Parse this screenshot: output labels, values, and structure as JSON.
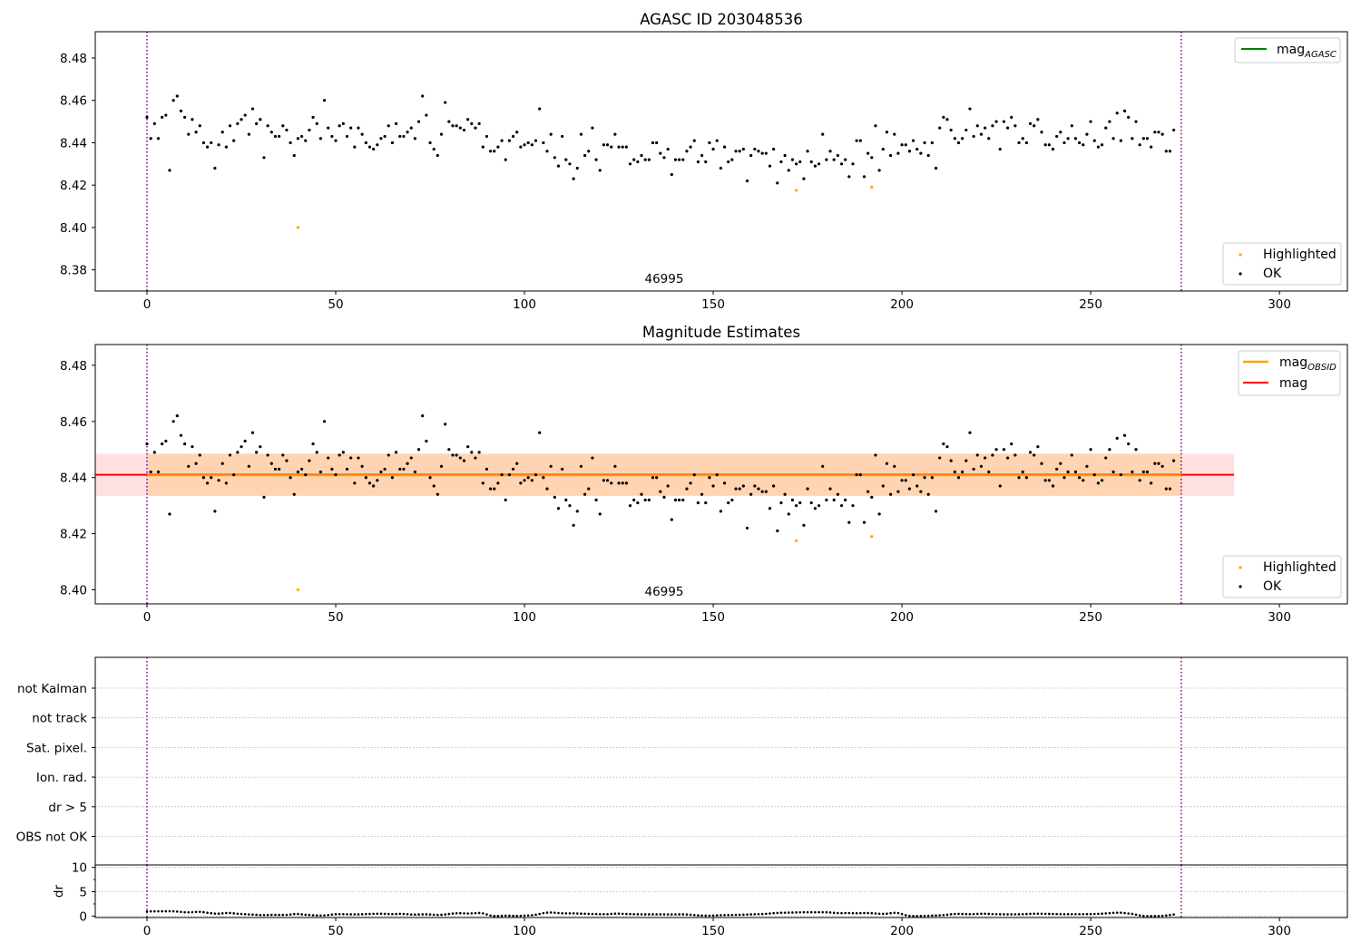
{
  "chart_data": [
    {
      "name": "agasc-panel",
      "type": "scatter",
      "title": "AGASC ID 203048536",
      "xlim": [
        -13.7,
        318
      ],
      "ylim": [
        8.37,
        8.4924
      ],
      "xticks": [
        0,
        50,
        100,
        150,
        200,
        250,
        300
      ],
      "yticks": [
        8.38,
        8.4,
        8.42,
        8.44,
        8.46,
        8.48
      ],
      "ytick_labels": [
        "8.38",
        "8.40",
        "8.42",
        "8.44",
        "8.46",
        "8.48"
      ],
      "vlines": [
        0,
        274
      ],
      "obsid_label": {
        "text": "46995",
        "x": 137
      },
      "legend_upper": [
        {
          "label": "mag",
          "subscript": "AGASC",
          "color": "#008000"
        }
      ],
      "legend_lower": [
        {
          "label": "Highlighted",
          "color": "#ffa500"
        },
        {
          "label": "OK",
          "color": "#000000"
        }
      ],
      "highlighted": [
        [
          40,
          8.4
        ],
        [
          172,
          8.4175
        ],
        [
          192,
          8.419
        ]
      ]
    },
    {
      "name": "estimates-panel",
      "type": "scatter",
      "title": "Magnitude Estimates",
      "xlim": [
        -13.7,
        318
      ],
      "ylim": [
        8.395,
        8.4874
      ],
      "xticks": [
        0,
        50,
        100,
        150,
        200,
        250,
        300
      ],
      "yticks": [
        8.4,
        8.42,
        8.44,
        8.46,
        8.48
      ],
      "ytick_labels": [
        "8.40",
        "8.42",
        "8.44",
        "8.46",
        "8.48"
      ],
      "vlines": [
        0,
        274
      ],
      "obsid_label": {
        "text": "46995",
        "x": 137
      },
      "mag": 8.441,
      "mag_band": [
        8.4335,
        8.4485
      ],
      "mag_band_x": [
        -13.7,
        288
      ],
      "mag_obsid": 8.4408,
      "mag_obsid_band": [
        8.4335,
        8.4485
      ],
      "mag_obsid_x": [
        0,
        274
      ],
      "legend_upper": [
        {
          "label": "mag",
          "subscript": "OBSID",
          "color": "#ffa500"
        },
        {
          "label": "mag",
          "subscript": "",
          "color": "#ff0000"
        }
      ],
      "legend_lower": [
        {
          "label": "Highlighted",
          "color": "#ffa500"
        },
        {
          "label": "OK",
          "color": "#000000"
        }
      ],
      "highlighted": [
        [
          40,
          8.4
        ],
        [
          172,
          8.4175
        ],
        [
          192,
          8.419
        ]
      ]
    },
    {
      "name": "flags-panel",
      "type": "scatter",
      "xlim": [
        -13.7,
        318
      ],
      "categories": [
        "not Kalman",
        "not track",
        "Sat. pixel.",
        "Ion. rad.",
        "dr > 5",
        "OBS not OK"
      ],
      "vlines": [
        0,
        274
      ]
    },
    {
      "name": "dr-panel",
      "type": "scatter",
      "xlim": [
        -13.7,
        318
      ],
      "ylim": [
        -0.3,
        10.5
      ],
      "xticks": [
        0,
        50,
        100,
        150,
        200,
        250,
        300
      ],
      "yticks": [
        0,
        5,
        10
      ],
      "ytick_labels": [
        "0",
        "5",
        "10"
      ],
      "ylabel": "dr",
      "vlines": [
        0,
        274
      ]
    }
  ],
  "samples": [
    [
      0,
      8.452,
      0.95
    ],
    [
      1,
      8.442,
      0.96
    ],
    [
      2,
      8.449,
      0.97
    ],
    [
      3,
      8.442,
      0.98
    ],
    [
      4,
      8.452,
      0.99
    ],
    [
      5,
      8.453,
      0.99
    ],
    [
      6,
      8.427,
      1.0
    ],
    [
      7,
      8.46,
      0.98
    ],
    [
      8,
      8.462,
      0.93
    ],
    [
      9,
      8.455,
      0.86
    ],
    [
      10,
      8.452,
      0.79
    ],
    [
      11,
      8.444,
      0.76
    ],
    [
      12,
      8.451,
      0.79
    ],
    [
      13,
      8.445,
      0.86
    ],
    [
      14,
      8.448,
      0.88
    ],
    [
      15,
      8.44,
      0.8
    ],
    [
      16,
      8.438,
      0.68
    ],
    [
      17,
      8.44,
      0.59
    ],
    [
      18,
      8.428,
      0.51
    ],
    [
      19,
      8.439,
      0.5
    ],
    [
      20,
      8.445,
      0.56
    ],
    [
      21,
      8.438,
      0.63
    ],
    [
      22,
      8.448,
      0.64
    ],
    [
      23,
      8.441,
      0.57
    ],
    [
      24,
      8.449,
      0.48
    ],
    [
      25,
      8.451,
      0.44
    ],
    [
      26,
      8.453,
      0.4
    ],
    [
      27,
      8.444,
      0.35
    ],
    [
      28,
      8.456,
      0.31
    ],
    [
      29,
      8.449,
      0.27
    ],
    [
      30,
      8.451,
      0.22
    ],
    [
      31,
      8.433,
      0.21
    ],
    [
      32,
      8.448,
      0.22
    ],
    [
      33,
      8.445,
      0.24
    ],
    [
      34,
      8.443,
      0.25
    ],
    [
      35,
      8.443,
      0.24
    ],
    [
      36,
      8.448,
      0.24
    ],
    [
      37,
      8.446,
      0.26
    ],
    [
      38,
      8.44,
      0.32
    ],
    [
      39,
      8.434,
      0.41
    ],
    [
      40,
      8.442,
      0.43
    ],
    [
      41,
      8.443,
      0.36
    ],
    [
      42,
      8.441,
      0.28
    ],
    [
      43,
      8.446,
      0.24
    ],
    [
      44,
      8.452,
      0.17
    ],
    [
      45,
      8.449,
      0.14
    ],
    [
      46,
      8.442,
      0.12
    ],
    [
      47,
      8.46,
      0.14
    ],
    [
      48,
      8.447,
      0.21
    ],
    [
      49,
      8.443,
      0.31
    ],
    [
      50,
      8.441,
      0.38
    ],
    [
      51,
      8.448,
      0.4
    ],
    [
      52,
      8.449,
      0.4
    ],
    [
      53,
      8.443,
      0.37
    ],
    [
      54,
      8.447,
      0.36
    ],
    [
      55,
      8.438,
      0.35
    ],
    [
      56,
      8.447,
      0.36
    ],
    [
      57,
      8.444,
      0.38
    ],
    [
      58,
      8.44,
      0.41
    ],
    [
      59,
      8.438,
      0.44
    ],
    [
      60,
      8.437,
      0.47
    ],
    [
      61,
      8.439,
      0.49
    ],
    [
      62,
      8.442,
      0.49
    ],
    [
      63,
      8.443,
      0.46
    ],
    [
      64,
      8.448,
      0.43
    ],
    [
      65,
      8.44,
      0.41
    ],
    [
      66,
      8.449,
      0.43
    ],
    [
      67,
      8.443,
      0.46
    ],
    [
      68,
      8.443,
      0.44
    ],
    [
      69,
      8.445,
      0.39
    ],
    [
      70,
      8.447,
      0.33
    ],
    [
      71,
      8.442,
      0.31
    ],
    [
      72,
      8.45,
      0.34
    ],
    [
      73,
      8.462,
      0.36
    ],
    [
      74,
      8.453,
      0.36
    ],
    [
      75,
      8.44,
      0.33
    ],
    [
      76,
      8.437,
      0.28
    ],
    [
      77,
      8.434,
      0.25
    ],
    [
      78,
      8.444,
      0.27
    ],
    [
      79,
      8.459,
      0.34
    ],
    [
      80,
      8.45,
      0.43
    ],
    [
      81,
      8.448,
      0.52
    ],
    [
      82,
      8.448,
      0.58
    ],
    [
      83,
      8.447,
      0.59
    ],
    [
      84,
      8.446,
      0.56
    ],
    [
      85,
      8.451,
      0.53
    ],
    [
      86,
      8.449,
      0.55
    ],
    [
      87,
      8.447,
      0.61
    ],
    [
      88,
      8.449,
      0.64
    ],
    [
      89,
      8.438,
      0.56
    ],
    [
      90,
      8.443,
      0.35
    ],
    [
      91,
      8.436,
      0.12
    ],
    [
      92,
      8.436,
      0.01
    ],
    [
      93,
      8.438,
      0.02
    ],
    [
      94,
      8.441,
      0.06
    ],
    [
      95,
      8.432,
      0.08
    ],
    [
      96,
      8.441,
      0.08
    ],
    [
      97,
      8.443,
      0.06
    ],
    [
      98,
      8.445,
      0.05
    ],
    [
      99,
      8.438,
      0.07
    ],
    [
      100,
      8.439,
      0.1
    ],
    [
      101,
      8.44,
      0.13
    ],
    [
      102,
      8.439,
      0.19
    ],
    [
      103,
      8.441,
      0.29
    ],
    [
      104,
      8.456,
      0.44
    ],
    [
      105,
      8.44,
      0.6
    ],
    [
      106,
      8.436,
      0.71
    ],
    [
      107,
      8.444,
      0.74
    ],
    [
      108,
      8.433,
      0.7
    ],
    [
      109,
      8.429,
      0.63
    ],
    [
      110,
      8.443,
      0.58
    ],
    [
      111,
      8.432,
      0.56
    ],
    [
      112,
      8.43,
      0.56
    ],
    [
      113,
      8.423,
      0.55
    ],
    [
      114,
      8.428,
      0.53
    ],
    [
      115,
      8.444,
      0.5
    ],
    [
      116,
      8.434,
      0.48
    ],
    [
      117,
      8.436,
      0.46
    ],
    [
      118,
      8.447,
      0.44
    ],
    [
      119,
      8.432,
      0.42
    ],
    [
      120,
      8.427,
      0.4
    ],
    [
      121,
      8.439,
      0.39
    ],
    [
      122,
      8.439,
      0.4
    ],
    [
      123,
      8.438,
      0.45
    ],
    [
      124,
      8.444,
      0.5
    ],
    [
      125,
      8.438,
      0.51
    ],
    [
      126,
      8.438,
      0.47
    ],
    [
      127,
      8.438,
      0.44
    ],
    [
      128,
      8.43,
      0.41
    ],
    [
      129,
      8.432,
      0.39
    ],
    [
      130,
      8.431,
      0.38
    ],
    [
      131,
      8.434,
      0.37
    ],
    [
      132,
      8.432,
      0.36
    ],
    [
      133,
      8.432,
      0.36
    ],
    [
      134,
      8.44,
      0.36
    ],
    [
      135,
      8.44,
      0.36
    ],
    [
      136,
      8.435,
      0.36
    ],
    [
      137,
      8.433,
      0.35
    ],
    [
      138,
      8.437,
      0.35
    ],
    [
      139,
      8.425,
      0.34
    ],
    [
      140,
      8.432,
      0.35
    ],
    [
      141,
      8.432,
      0.36
    ],
    [
      142,
      8.432,
      0.36
    ],
    [
      143,
      8.436,
      0.33
    ],
    [
      144,
      8.438,
      0.28
    ],
    [
      145,
      8.441,
      0.21
    ],
    [
      146,
      8.431,
      0.15
    ],
    [
      147,
      8.434,
      0.1
    ],
    [
      148,
      8.431,
      0.08
    ],
    [
      149,
      8.44,
      0.09
    ],
    [
      150,
      8.437,
      0.12
    ],
    [
      151,
      8.441,
      0.15
    ],
    [
      152,
      8.428,
      0.18
    ],
    [
      153,
      8.438,
      0.2
    ],
    [
      154,
      8.431,
      0.22
    ],
    [
      155,
      8.432,
      0.23
    ],
    [
      156,
      8.436,
      0.25
    ],
    [
      157,
      8.436,
      0.28
    ],
    [
      158,
      8.437,
      0.3
    ],
    [
      159,
      8.422,
      0.33
    ],
    [
      160,
      8.434,
      0.36
    ],
    [
      161,
      8.437,
      0.38
    ],
    [
      162,
      8.436,
      0.4
    ],
    [
      163,
      8.435,
      0.43
    ],
    [
      164,
      8.435,
      0.47
    ],
    [
      165,
      8.429,
      0.53
    ],
    [
      166,
      8.437,
      0.6
    ],
    [
      167,
      8.421,
      0.65
    ],
    [
      168,
      8.431,
      0.68
    ],
    [
      169,
      8.434,
      0.7
    ],
    [
      170,
      8.427,
      0.72
    ],
    [
      171,
      8.432,
      0.73
    ],
    [
      172,
      8.43,
      0.75
    ],
    [
      173,
      8.431,
      0.77
    ],
    [
      174,
      8.423,
      0.78
    ],
    [
      175,
      8.436,
      0.79
    ],
    [
      176,
      8.431,
      0.79
    ],
    [
      177,
      8.429,
      0.79
    ],
    [
      178,
      8.43,
      0.79
    ],
    [
      179,
      8.444,
      0.79
    ],
    [
      180,
      8.432,
      0.78
    ],
    [
      181,
      8.436,
      0.73
    ],
    [
      182,
      8.432,
      0.66
    ],
    [
      183,
      8.434,
      0.62
    ],
    [
      184,
      8.43,
      0.61
    ],
    [
      185,
      8.432,
      0.63
    ],
    [
      186,
      8.424,
      0.63
    ],
    [
      187,
      8.43,
      0.6
    ],
    [
      188,
      8.441,
      0.59
    ],
    [
      189,
      8.441,
      0.61
    ],
    [
      190,
      8.424,
      0.63
    ],
    [
      191,
      8.435,
      0.62
    ],
    [
      192,
      8.433,
      0.59
    ],
    [
      193,
      8.448,
      0.54
    ],
    [
      194,
      8.427,
      0.49
    ],
    [
      195,
      8.437,
      0.45
    ],
    [
      196,
      8.445,
      0.5
    ],
    [
      197,
      8.434,
      0.6
    ],
    [
      198,
      8.444,
      0.67
    ],
    [
      199,
      8.435,
      0.62
    ],
    [
      200,
      8.439,
      0.42
    ],
    [
      201,
      8.439,
      0.18
    ],
    [
      202,
      8.436,
      0.04
    ],
    [
      203,
      8.441,
      0.01
    ],
    [
      204,
      8.437,
      0.0
    ],
    [
      205,
      8.435,
      0.02
    ],
    [
      206,
      8.44,
      0.05
    ],
    [
      207,
      8.434,
      0.07
    ],
    [
      208,
      8.44,
      0.1
    ],
    [
      209,
      8.428,
      0.13
    ],
    [
      210,
      8.447,
      0.16
    ],
    [
      211,
      8.452,
      0.21
    ],
    [
      212,
      8.451,
      0.29
    ],
    [
      213,
      8.446,
      0.38
    ],
    [
      214,
      8.442,
      0.43
    ],
    [
      215,
      8.44,
      0.45
    ],
    [
      216,
      8.442,
      0.43
    ],
    [
      217,
      8.446,
      0.41
    ],
    [
      218,
      8.456,
      0.4
    ],
    [
      219,
      8.443,
      0.42
    ],
    [
      220,
      8.448,
      0.45
    ],
    [
      221,
      8.444,
      0.48
    ],
    [
      222,
      8.447,
      0.48
    ],
    [
      223,
      8.442,
      0.45
    ],
    [
      224,
      8.448,
      0.42
    ],
    [
      225,
      8.45,
      0.39
    ],
    [
      226,
      8.437,
      0.38
    ],
    [
      227,
      8.45,
      0.37
    ],
    [
      228,
      8.447,
      0.37
    ],
    [
      229,
      8.452,
      0.37
    ],
    [
      230,
      8.448,
      0.37
    ],
    [
      231,
      8.44,
      0.38
    ],
    [
      232,
      8.442,
      0.4
    ],
    [
      233,
      8.44,
      0.43
    ],
    [
      234,
      8.449,
      0.46
    ],
    [
      235,
      8.448,
      0.48
    ],
    [
      236,
      8.451,
      0.49
    ],
    [
      237,
      8.445,
      0.48
    ],
    [
      238,
      8.439,
      0.47
    ],
    [
      239,
      8.439,
      0.45
    ],
    [
      240,
      8.437,
      0.44
    ],
    [
      241,
      8.443,
      0.42
    ],
    [
      242,
      8.445,
      0.4
    ],
    [
      243,
      8.44,
      0.39
    ],
    [
      244,
      8.442,
      0.39
    ],
    [
      245,
      8.448,
      0.39
    ],
    [
      246,
      8.442,
      0.39
    ],
    [
      247,
      8.44,
      0.4
    ],
    [
      248,
      8.439,
      0.4
    ],
    [
      249,
      8.444,
      0.41
    ],
    [
      250,
      8.45,
      0.42
    ],
    [
      251,
      8.441,
      0.44
    ],
    [
      252,
      8.438,
      0.46
    ],
    [
      253,
      8.439,
      0.5
    ],
    [
      254,
      8.447,
      0.55
    ],
    [
      255,
      8.45,
      0.61
    ],
    [
      256,
      8.442,
      0.66
    ],
    [
      257,
      8.454,
      0.69
    ],
    [
      258,
      8.441,
      0.69
    ],
    [
      259,
      8.455,
      0.63
    ],
    [
      260,
      8.452,
      0.54
    ],
    [
      261,
      8.442,
      0.45
    ],
    [
      262,
      8.45,
      0.3
    ],
    [
      263,
      8.439,
      0.13
    ],
    [
      264,
      8.442,
      0.03
    ],
    [
      265,
      8.442,
      0.0
    ],
    [
      266,
      8.438,
      0.0
    ],
    [
      267,
      8.445,
      0.0
    ],
    [
      268,
      8.445,
      0.02
    ],
    [
      269,
      8.444,
      0.07
    ],
    [
      270,
      8.436,
      0.13
    ],
    [
      271,
      8.436,
      0.22
    ],
    [
      272,
      8.446,
      0.34
    ]
  ]
}
